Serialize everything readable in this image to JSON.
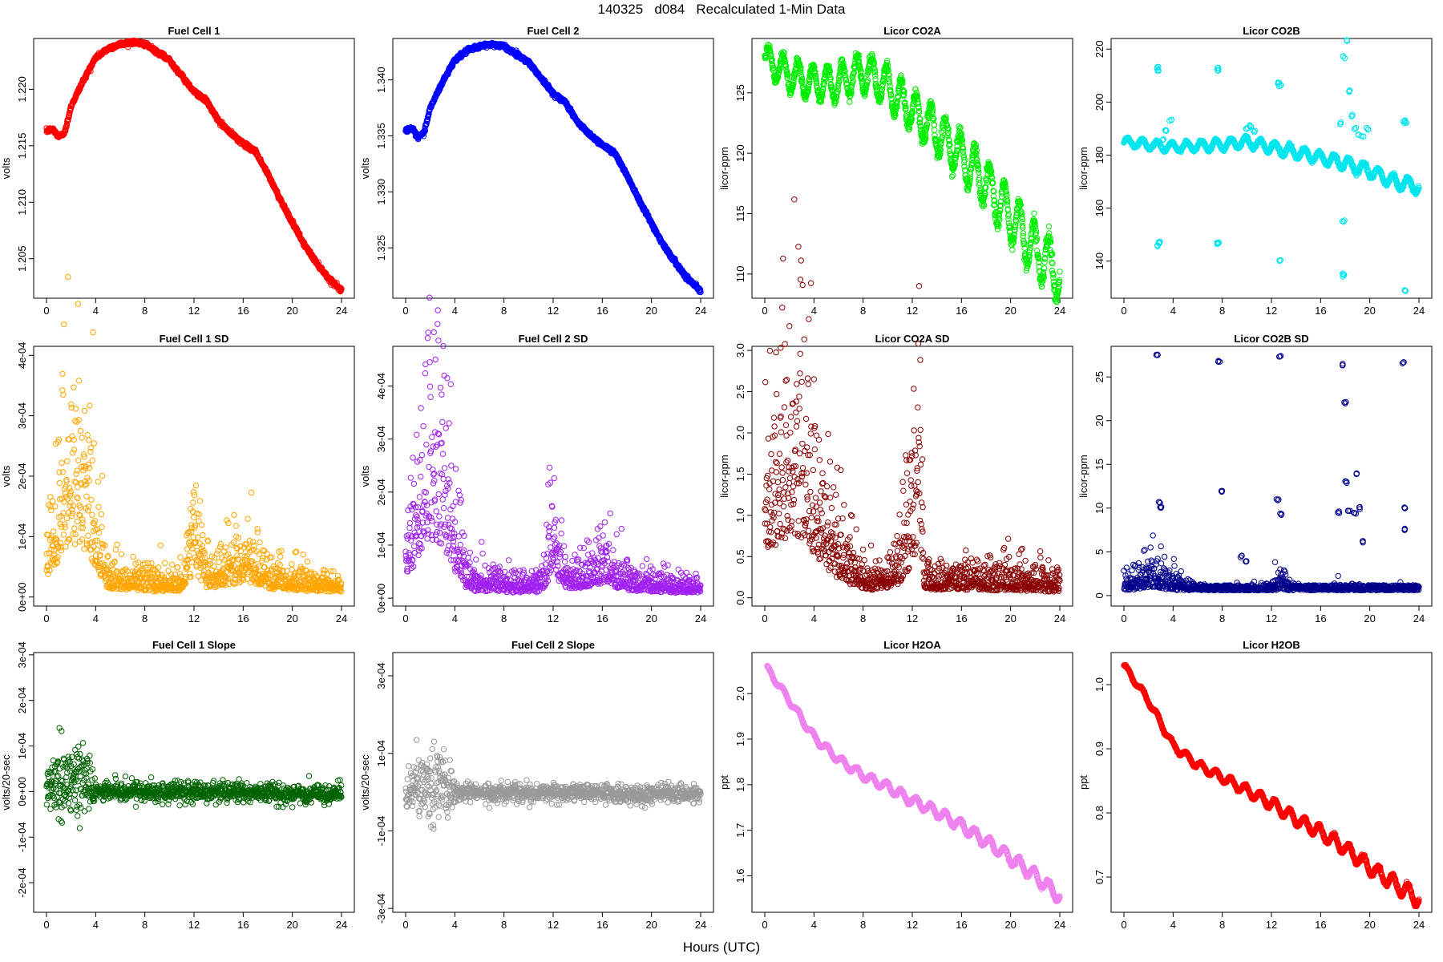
{
  "page": {
    "title": "140325   d084   Recalculated 1-Min Data",
    "x_axis_title": "Hours (UTC)"
  },
  "chart_data": [
    {
      "type": "scatter",
      "title": "Fuel Cell 1",
      "xlabel": "",
      "ylabel": "volts",
      "color": "#ff0000",
      "xlim": [
        0,
        24
      ],
      "ylim": [
        1.2015,
        1.2245
      ],
      "xticks": [
        "0",
        "4",
        "8",
        "12",
        "16",
        "20",
        "24"
      ],
      "yticks": [
        {
          "v": 1.205,
          "label": "1.205"
        },
        {
          "v": 1.21,
          "label": "1.210"
        },
        {
          "v": 1.215,
          "label": "1.215"
        },
        {
          "v": 1.22,
          "label": "1.220"
        }
      ],
      "series": [
        {
          "x": [
            0,
            0.5,
            1,
            1.5,
            2,
            3,
            4,
            5,
            6,
            7,
            8,
            9,
            10,
            11,
            12,
            13,
            14,
            15,
            16,
            17,
            18,
            19,
            20,
            21,
            22,
            23,
            24
          ],
          "y": [
            1.2163,
            1.2165,
            1.2158,
            1.2162,
            1.2185,
            1.2208,
            1.2228,
            1.2236,
            1.224,
            1.2242,
            1.224,
            1.2233,
            1.2226,
            1.2212,
            1.2198,
            1.219,
            1.2172,
            1.2161,
            1.2152,
            1.2145,
            1.2125,
            1.2103,
            1.2082,
            1.2062,
            1.2046,
            1.2032,
            1.2022
          ]
        }
      ]
    },
    {
      "type": "scatter",
      "title": "Fuel Cell 2",
      "xlabel": "",
      "ylabel": "volts",
      "color": "#0000ff",
      "xlim": [
        0,
        24
      ],
      "ylim": [
        1.3205,
        1.3437
      ],
      "xticks": [
        "0",
        "4",
        "8",
        "12",
        "16",
        "20",
        "24"
      ],
      "yticks": [
        {
          "v": 1.325,
          "label": "1.325"
        },
        {
          "v": 1.33,
          "label": "1.330"
        },
        {
          "v": 1.335,
          "label": "1.335"
        },
        {
          "v": 1.34,
          "label": "1.340"
        }
      ],
      "series": [
        {
          "x": [
            0,
            0.5,
            1,
            1.5,
            2,
            3,
            4,
            5,
            6,
            7,
            8,
            9,
            10,
            11,
            12,
            13,
            14,
            15,
            16,
            17,
            18,
            19,
            20,
            21,
            22,
            23,
            24
          ],
          "y": [
            1.3355,
            1.3357,
            1.3348,
            1.3353,
            1.3375,
            1.3398,
            1.3418,
            1.3426,
            1.343,
            1.3432,
            1.343,
            1.3423,
            1.3416,
            1.3402,
            1.3388,
            1.338,
            1.3362,
            1.3351,
            1.3342,
            1.3335,
            1.3315,
            1.3293,
            1.3272,
            1.3252,
            1.3236,
            1.3222,
            1.3212
          ]
        }
      ]
    },
    {
      "type": "scatter",
      "title": "Licor CO2A",
      "xlabel": "",
      "ylabel": "licor-ppm",
      "color": "#00ee00",
      "xlim": [
        0,
        24
      ],
      "ylim": [
        108,
        129.5
      ],
      "xticks": [
        "0",
        "4",
        "8",
        "12",
        "16",
        "20",
        "24"
      ],
      "yticks": [
        {
          "v": 110,
          "label": "110"
        },
        {
          "v": 115,
          "label": "115"
        },
        {
          "v": 120,
          "label": "120"
        },
        {
          "v": 125,
          "label": "125"
        }
      ],
      "oscillation": {
        "period_hours": 1.2,
        "amplitude": [
          1.2,
          2.2
        ]
      },
      "series": [
        {
          "x": [
            0,
            2,
            4,
            6,
            8,
            10,
            12,
            14,
            16,
            18,
            20,
            22,
            24
          ],
          "y": [
            127.8,
            126.5,
            125.8,
            125.8,
            126.8,
            125.5,
            123.5,
            121.8,
            119.8,
            117.5,
            114.8,
            112,
            110
          ]
        }
      ]
    },
    {
      "type": "scatter",
      "title": "Licor CO2B",
      "xlabel": "",
      "ylabel": "licor-ppm",
      "color": "#00e5ee",
      "xlim": [
        0,
        24
      ],
      "ylim": [
        126,
        224
      ],
      "xticks": [
        "0",
        "4",
        "8",
        "12",
        "16",
        "20",
        "24"
      ],
      "yticks": [
        {
          "v": 140,
          "label": "140"
        },
        {
          "v": 160,
          "label": "160"
        },
        {
          "v": 180,
          "label": "180"
        },
        {
          "v": 200,
          "label": "200"
        },
        {
          "v": 220,
          "label": "220"
        }
      ],
      "oscillation": {
        "period_hours": 1.2,
        "amplitude": [
          1.5,
          2.5
        ]
      },
      "series": [
        {
          "x": [
            0,
            2,
            4,
            6,
            8,
            10,
            12,
            14,
            16,
            18,
            20,
            22,
            24
          ],
          "y": [
            185,
            184,
            183,
            183.5,
            184,
            185,
            183,
            181,
            179,
            177,
            174,
            170,
            168
          ]
        }
      ],
      "outliers": {
        "x": [
          2.7,
          2.8,
          2.9,
          2.75,
          2.85,
          7.6,
          7.7,
          7.65,
          7.6,
          12.6,
          12.7,
          12.65,
          17.8,
          17.9,
          18.1,
          17.85,
          18.3,
          17.9,
          22.8,
          22.9,
          22.85,
          3.2,
          3.4,
          3.8,
          10,
          10.3,
          10.6,
          12.1,
          19,
          19.4,
          19.8,
          17.6,
          18.5,
          18.8
        ],
        "y": [
          213,
          212,
          147,
          146,
          147,
          213,
          212,
          147,
          146.5,
          207,
          206,
          140,
          135,
          134.5,
          223,
          155,
          204,
          217,
          193,
          192,
          129,
          186,
          189,
          193,
          190,
          191,
          189,
          184,
          188,
          187,
          190,
          192,
          195,
          190
        ]
      }
    },
    {
      "type": "scatter",
      "title": "Fuel Cell 1 SD",
      "xlabel": "",
      "ylabel": "volts",
      "color": "#ffa500",
      "xlim": [
        0,
        24
      ],
      "ylim": [
        -1.5e-05,
        0.000415
      ],
      "xticks": [
        "0",
        "4",
        "8",
        "12",
        "16",
        "20",
        "24"
      ],
      "yticks": [
        {
          "v": 0,
          "label": "0e+00"
        },
        {
          "v": 0.0001,
          "label": "1e-04"
        },
        {
          "v": 0.0002,
          "label": "2e-04"
        },
        {
          "v": 0.0003,
          "label": "3e-04"
        },
        {
          "v": 0.0004,
          "label": "4e-04"
        }
      ],
      "series": [
        {
          "x": [
            0,
            1,
            2,
            3,
            4,
            5,
            7,
            9,
            11,
            12,
            13,
            14,
            16,
            18,
            20,
            22,
            24
          ],
          "y": [
            7e-05,
            0.00013,
            0.0002,
            0.00018,
            0.0001,
            3e-05,
            2.5e-05,
            2e-05,
            2.2e-05,
            9e-05,
            3.5e-05,
            3.5e-05,
            5.5e-05,
            3e-05,
            2.5e-05,
            2e-05,
            1.5e-05
          ]
        }
      ]
    },
    {
      "type": "scatter",
      "title": "Fuel Cell 2 SD",
      "xlabel": "",
      "ylabel": "volts",
      "color": "#a020f0",
      "xlim": [
        0,
        24
      ],
      "ylim": [
        -1.5e-05,
        0.000475
      ],
      "xticks": [
        "0",
        "4",
        "8",
        "12",
        "16",
        "20",
        "24"
      ],
      "yticks": [
        {
          "v": 0,
          "label": "0e+00"
        },
        {
          "v": 0.0001,
          "label": "1e-04"
        },
        {
          "v": 0.0002,
          "label": "2e-04"
        },
        {
          "v": 0.0003,
          "label": "3e-04"
        },
        {
          "v": 0.0004,
          "label": "4e-04"
        }
      ],
      "series": [
        {
          "x": [
            0,
            1,
            2,
            3,
            4,
            5,
            7,
            9,
            11,
            12,
            13,
            14,
            16,
            18,
            20,
            22,
            24
          ],
          "y": [
            8e-05,
            0.00015,
            0.00024,
            0.00022,
            0.00011,
            3e-05,
            2.8e-05,
            2.2e-05,
            2.4e-05,
            0.0001,
            4e-05,
            4e-05,
            6e-05,
            3.2e-05,
            2.6e-05,
            2.2e-05,
            1.8e-05
          ]
        }
      ]
    },
    {
      "type": "scatter",
      "title": "Licor CO2A SD",
      "xlabel": "",
      "ylabel": "licor-ppm",
      "color": "#8b0000",
      "xlim": [
        0,
        24
      ],
      "ylim": [
        -0.1,
        3.05
      ],
      "xticks": [
        "0",
        "4",
        "8",
        "12",
        "16",
        "20",
        "24"
      ],
      "yticks": [
        {
          "v": 0,
          "label": "0.0"
        },
        {
          "v": 0.5,
          "label": "0.5"
        },
        {
          "v": 1,
          "label": "1.0"
        },
        {
          "v": 1.5,
          "label": "1.5"
        },
        {
          "v": 2,
          "label": "2.0"
        },
        {
          "v": 2.5,
          "label": "2.5"
        },
        {
          "v": 3,
          "label": "3.0"
        }
      ],
      "series": [
        {
          "x": [
            0,
            1,
            2,
            3,
            4,
            5,
            6,
            7,
            8,
            9,
            10,
            11,
            12,
            12.6,
            13,
            14,
            16,
            18,
            20,
            22,
            24
          ],
          "y": [
            1.2,
            1.4,
            1.7,
            1.6,
            1.2,
            0.8,
            0.5,
            0.35,
            0.25,
            0.2,
            0.22,
            0.4,
            0.9,
            1.6,
            0.25,
            0.2,
            0.22,
            0.2,
            0.2,
            0.18,
            0.15
          ]
        }
      ]
    },
    {
      "type": "scatter",
      "title": "Licor CO2B SD",
      "xlabel": "",
      "ylabel": "licor-ppm",
      "color": "#00008b",
      "xlim": [
        0,
        24
      ],
      "ylim": [
        -1.2,
        28.5
      ],
      "xticks": [
        "0",
        "4",
        "8",
        "12",
        "16",
        "20",
        "24"
      ],
      "yticks": [
        {
          "v": 0,
          "label": "0"
        },
        {
          "v": 5,
          "label": "5"
        },
        {
          "v": 10,
          "label": "10"
        },
        {
          "v": 15,
          "label": "15"
        },
        {
          "v": 20,
          "label": "20"
        },
        {
          "v": 25,
          "label": "25"
        }
      ],
      "series": [
        {
          "x": [
            0,
            2,
            3,
            4,
            6,
            8,
            10,
            12,
            12.6,
            14,
            16,
            18,
            20,
            22,
            24
          ],
          "y": [
            1.2,
            2,
            1.8,
            1.3,
            0.6,
            0.4,
            0.5,
            0.6,
            1.8,
            0.4,
            0.4,
            0.6,
            0.5,
            0.4,
            0.3
          ]
        }
      ],
      "outliers": {
        "x": [
          2.7,
          2.9,
          3,
          7.7,
          7.9,
          12.5,
          12.7,
          12.8,
          17.8,
          18,
          18.1,
          18.3,
          19,
          19.2,
          22.7,
          22.8,
          22.9,
          9.5,
          9.9,
          17.5,
          18.8,
          19.5
        ],
        "y": [
          27.6,
          10.7,
          10,
          26.8,
          12,
          10.9,
          27.3,
          9.3,
          26.4,
          22,
          13,
          9.8,
          14,
          10,
          26.6,
          10,
          7.6,
          4.5,
          3.9,
          9.5,
          9.4,
          6.2
        ]
      }
    },
    {
      "type": "scatter",
      "title": "Fuel Cell 1 Slope",
      "xlabel": "",
      "ylabel": "volts/20-sec",
      "color": "#006400",
      "xlim": [
        0,
        24
      ],
      "ylim": [
        -0.000265,
        0.000305
      ],
      "xticks": [
        "0",
        "4",
        "8",
        "12",
        "16",
        "20",
        "24"
      ],
      "yticks": [
        {
          "v": -0.0002,
          "label": "-2e-04"
        },
        {
          "v": -0.0001,
          "label": "-1e-04"
        },
        {
          "v": 0,
          "label": "0e+00"
        },
        {
          "v": 0.0001,
          "label": "1e-04"
        },
        {
          "v": 0.0002,
          "label": "2e-04"
        },
        {
          "v": 0.0003,
          "label": "3e-04"
        }
      ],
      "series": [
        {
          "x": [
            0,
            1,
            2,
            3,
            4,
            6,
            8,
            10,
            12,
            14,
            16,
            18,
            20,
            22,
            24
          ],
          "y": [
            5e-06,
            1e-05,
            3e-05,
            2e-05,
            2e-06,
            0,
            0,
            -2e-06,
            0,
            -3e-06,
            -2e-06,
            -4e-06,
            -6e-06,
            -5e-06,
            -4e-06
          ]
        }
      ]
    },
    {
      "type": "scatter",
      "title": "Fuel Cell 2 Slope",
      "xlabel": "",
      "ylabel": "volts/20-sec",
      "color": "#999999",
      "xlim": [
        0,
        24
      ],
      "ylim": [
        -0.00031,
        0.00036
      ],
      "xticks": [
        "0",
        "4",
        "8",
        "12",
        "16",
        "20",
        "24"
      ],
      "yticks": [
        {
          "v": -0.0003,
          "label": "-3e-04"
        },
        {
          "v": -0.0001,
          "label": "-1e-04"
        },
        {
          "v": 0.0001,
          "label": "1e-04"
        },
        {
          "v": 0.0003,
          "label": "3e-04"
        }
      ],
      "series": [
        {
          "x": [
            0,
            1,
            2,
            3,
            4,
            6,
            8,
            10,
            12,
            14,
            16,
            18,
            20,
            22,
            24
          ],
          "y": [
            5e-06,
            1e-05,
            3e-05,
            2e-05,
            2e-06,
            0,
            0,
            -2e-06,
            0,
            -3e-06,
            -2e-06,
            -4e-06,
            -6e-06,
            -5e-06,
            -4e-06
          ]
        }
      ]
    },
    {
      "type": "scatter",
      "title": "Licor H2OA",
      "xlabel": "",
      "ylabel": "ppt",
      "color": "#ee82ee",
      "xlim": [
        0,
        24
      ],
      "ylim": [
        1.52,
        2.09
      ],
      "xticks": [
        "0",
        "4",
        "8",
        "12",
        "16",
        "20",
        "24"
      ],
      "yticks": [
        {
          "v": 1.6,
          "label": "1.6"
        },
        {
          "v": 1.7,
          "label": "1.7"
        },
        {
          "v": 1.8,
          "label": "1.8"
        },
        {
          "v": 1.9,
          "label": "1.9"
        },
        {
          "v": 2.0,
          "label": "2.0"
        }
      ],
      "oscillation": {
        "period_hours": 1.2,
        "amplitude": [
          0.006,
          0.014
        ]
      },
      "series": [
        {
          "x": [
            0.2,
            2,
            4,
            6,
            8,
            10,
            12,
            14,
            16,
            18,
            20,
            22,
            24
          ],
          "y": [
            2.055,
            1.985,
            1.905,
            1.855,
            1.82,
            1.795,
            1.765,
            1.74,
            1.71,
            1.675,
            1.64,
            1.6,
            1.555
          ]
        }
      ]
    },
    {
      "type": "scatter",
      "title": "Licor H2OB",
      "xlabel": "",
      "ylabel": "ppt",
      "color": "#ff0000",
      "xlim": [
        0,
        24
      ],
      "ylim": [
        0.645,
        1.05
      ],
      "xticks": [
        "0",
        "4",
        "8",
        "12",
        "16",
        "20",
        "24"
      ],
      "yticks": [
        {
          "v": 0.7,
          "label": "0.7"
        },
        {
          "v": 0.8,
          "label": "0.8"
        },
        {
          "v": 0.9,
          "label": "0.9"
        },
        {
          "v": 1.0,
          "label": "1.0"
        }
      ],
      "oscillation": {
        "period_hours": 1.2,
        "amplitude": [
          0.004,
          0.012
        ]
      },
      "series": [
        {
          "x": [
            0,
            2,
            4,
            6,
            8,
            10,
            12,
            14,
            16,
            18,
            20,
            22,
            24
          ],
          "y": [
            1.03,
            0.975,
            0.905,
            0.875,
            0.855,
            0.835,
            0.815,
            0.79,
            0.77,
            0.745,
            0.715,
            0.69,
            0.665
          ]
        }
      ]
    }
  ]
}
